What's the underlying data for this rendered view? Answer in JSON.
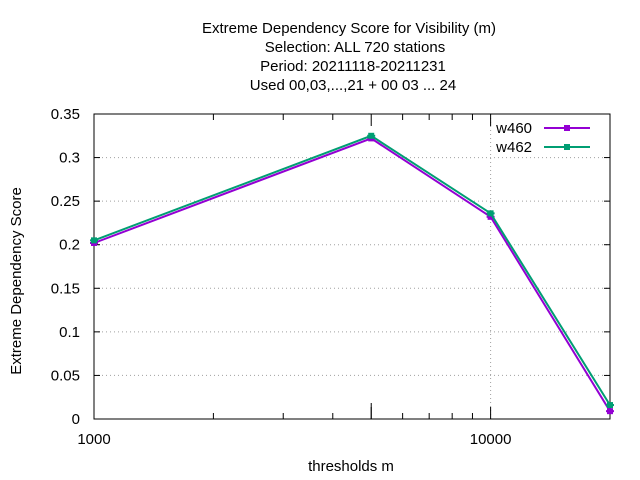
{
  "chart_data": {
    "type": "line",
    "title": [
      "Extreme Dependency Score  for Visibility (m)",
      "Selection: ALL     720 stations",
      "Period: 20211118-20211231",
      "Used  00,03,...,21  + 00 03 ... 24"
    ],
    "xlabel": "thresholds m",
    "ylabel": "Extreme Dependency Score",
    "x_scale": "log",
    "xlim": [
      1000,
      20000
    ],
    "ylim": [
      0,
      0.35
    ],
    "x_tick_labels": [
      {
        "value": 1000,
        "label": "1000"
      },
      {
        "value": 10000,
        "label": "10000"
      }
    ],
    "y_ticks": [
      {
        "value": 0,
        "label": "0"
      },
      {
        "value": 0.05,
        "label": "0.05"
      },
      {
        "value": 0.1,
        "label": "0.1"
      },
      {
        "value": 0.15,
        "label": "0.15"
      },
      {
        "value": 0.2,
        "label": "0.2"
      },
      {
        "value": 0.25,
        "label": "0.25"
      },
      {
        "value": 0.3,
        "label": "0.3"
      },
      {
        "value": 0.35,
        "label": "0.35"
      }
    ],
    "grid": true,
    "legend_position": "top-right",
    "series": [
      {
        "name": "w460",
        "color": "#9400d3",
        "x": [
          1000,
          5000,
          10000,
          20000
        ],
        "y": [
          0.202,
          0.322,
          0.232,
          0.009
        ]
      },
      {
        "name": "w462",
        "color": "#009e73",
        "x": [
          1000,
          5000,
          10000,
          20000
        ],
        "y": [
          0.205,
          0.325,
          0.236,
          0.016
        ]
      }
    ]
  }
}
